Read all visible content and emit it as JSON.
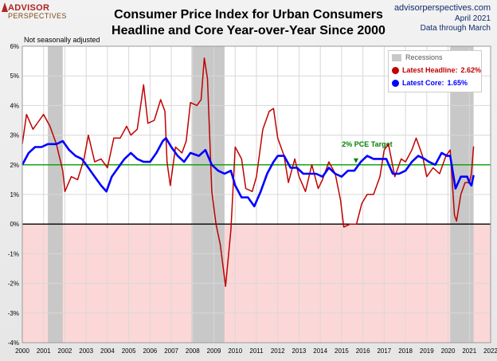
{
  "logo": {
    "line1": "ADVISOR",
    "line2": "PERSPECTIVES"
  },
  "site": "advisorperspectives.com",
  "date_line": "April 2021",
  "through_line": "Data through March",
  "note": "Not seasonally adjusted",
  "colors": {
    "headline": "#c00000",
    "core": "#0000ff",
    "target": "#00a000",
    "recession": "#c8c8c8",
    "negative_band": "#fcd7d7"
  },
  "chart_data": {
    "type": "line",
    "title": "Consumer Price Index for Urban Consumers",
    "subtitle": "Headline and Core Year-over-Year Since 2000",
    "xlim": [
      2000,
      2022
    ],
    "ylim": [
      -4,
      6
    ],
    "y_ticks": [
      -4,
      -3,
      -2,
      -1,
      0,
      1,
      2,
      3,
      4,
      5,
      6
    ],
    "y_tick_labels": [
      "-4%",
      "-3%",
      "-2%",
      "-1%",
      "0%",
      "1%",
      "2%",
      "3%",
      "4%",
      "5%",
      "6%"
    ],
    "x_ticks": [
      2000,
      2001,
      2002,
      2003,
      2004,
      2005,
      2006,
      2007,
      2008,
      2009,
      2010,
      2011,
      2012,
      2013,
      2014,
      2015,
      2016,
      2017,
      2018,
      2019,
      2020,
      2021,
      2022
    ],
    "x_tick_labels": [
      "2000",
      "2001",
      "2002",
      "2003",
      "2004",
      "2005",
      "2006",
      "2007",
      "2008",
      "2009",
      "2010",
      "2011",
      "2012",
      "2013",
      "2014",
      "2015",
      "2016",
      "2017",
      "2018",
      "2019",
      "2020",
      "2021",
      "2022"
    ],
    "grid": true,
    "legend_position": "top-right",
    "legend": {
      "recessions": "Recessions",
      "headline_label": "Latest Headline:",
      "headline_value": "2.62%",
      "core_label": "Latest Core:",
      "core_value": "1.65%"
    },
    "recessions": [
      {
        "start": 2001.2,
        "end": 2001.9
      },
      {
        "start": 2007.95,
        "end": 2009.5
      },
      {
        "start": 2020.1,
        "end": 2021.2
      }
    ],
    "target": {
      "value": 2,
      "label": "2% PCE Target",
      "label_x": 2016.2
    },
    "series": [
      {
        "name": "Headline",
        "color": "#c00000",
        "points": [
          [
            2000,
            2.7
          ],
          [
            2000.2,
            3.7
          ],
          [
            2000.5,
            3.2
          ],
          [
            2000.8,
            3.5
          ],
          [
            2001,
            3.7
          ],
          [
            2001.3,
            3.3
          ],
          [
            2001.6,
            2.7
          ],
          [
            2001.9,
            1.8
          ],
          [
            2002,
            1.1
          ],
          [
            2002.3,
            1.6
          ],
          [
            2002.6,
            1.5
          ],
          [
            2002.9,
            2.2
          ],
          [
            2003.1,
            3.0
          ],
          [
            2003.4,
            2.1
          ],
          [
            2003.7,
            2.2
          ],
          [
            2004,
            1.9
          ],
          [
            2004.3,
            2.9
          ],
          [
            2004.6,
            2.9
          ],
          [
            2004.9,
            3.3
          ],
          [
            2005.1,
            3.0
          ],
          [
            2005.4,
            3.2
          ],
          [
            2005.7,
            4.7
          ],
          [
            2005.9,
            3.4
          ],
          [
            2006.2,
            3.5
          ],
          [
            2006.5,
            4.2
          ],
          [
            2006.7,
            3.8
          ],
          [
            2006.8,
            2.1
          ],
          [
            2006.95,
            1.3
          ],
          [
            2007.2,
            2.6
          ],
          [
            2007.5,
            2.4
          ],
          [
            2007.7,
            2.8
          ],
          [
            2007.9,
            4.1
          ],
          [
            2008.2,
            4.0
          ],
          [
            2008.4,
            4.2
          ],
          [
            2008.55,
            5.6
          ],
          [
            2008.7,
            4.9
          ],
          [
            2008.9,
            1.1
          ],
          [
            2009.1,
            0.0
          ],
          [
            2009.3,
            -0.7
          ],
          [
            2009.55,
            -2.1
          ],
          [
            2009.8,
            -0.2
          ],
          [
            2010,
            2.6
          ],
          [
            2010.3,
            2.2
          ],
          [
            2010.5,
            1.2
          ],
          [
            2010.8,
            1.1
          ],
          [
            2011,
            1.6
          ],
          [
            2011.3,
            3.2
          ],
          [
            2011.6,
            3.8
          ],
          [
            2011.8,
            3.9
          ],
          [
            2012,
            2.9
          ],
          [
            2012.3,
            2.3
          ],
          [
            2012.5,
            1.4
          ],
          [
            2012.8,
            2.2
          ],
          [
            2013,
            1.6
          ],
          [
            2013.3,
            1.1
          ],
          [
            2013.6,
            2.0
          ],
          [
            2013.9,
            1.2
          ],
          [
            2014.1,
            1.5
          ],
          [
            2014.4,
            2.1
          ],
          [
            2014.7,
            1.7
          ],
          [
            2014.95,
            0.8
          ],
          [
            2015.1,
            -0.1
          ],
          [
            2015.4,
            0.0
          ],
          [
            2015.7,
            0.0
          ],
          [
            2015.95,
            0.7
          ],
          [
            2016.2,
            1.0
          ],
          [
            2016.5,
            1.0
          ],
          [
            2016.8,
            1.6
          ],
          [
            2017,
            2.5
          ],
          [
            2017.2,
            2.7
          ],
          [
            2017.5,
            1.6
          ],
          [
            2017.8,
            2.2
          ],
          [
            2018,
            2.1
          ],
          [
            2018.3,
            2.5
          ],
          [
            2018.5,
            2.9
          ],
          [
            2018.8,
            2.3
          ],
          [
            2019,
            1.6
          ],
          [
            2019.3,
            1.9
          ],
          [
            2019.6,
            1.7
          ],
          [
            2019.9,
            2.3
          ],
          [
            2020.1,
            2.5
          ],
          [
            2020.3,
            0.3
          ],
          [
            2020.4,
            0.1
          ],
          [
            2020.6,
            1.0
          ],
          [
            2020.8,
            1.4
          ],
          [
            2021,
            1.4
          ],
          [
            2021.1,
            1.7
          ],
          [
            2021.2,
            2.62
          ]
        ]
      },
      {
        "name": "Core",
        "color": "#0000ff",
        "points": [
          [
            2000,
            2.0
          ],
          [
            2000.3,
            2.4
          ],
          [
            2000.6,
            2.6
          ],
          [
            2000.9,
            2.6
          ],
          [
            2001.2,
            2.7
          ],
          [
            2001.6,
            2.7
          ],
          [
            2001.9,
            2.8
          ],
          [
            2002.2,
            2.5
          ],
          [
            2002.5,
            2.3
          ],
          [
            2002.8,
            2.2
          ],
          [
            2003.1,
            1.9
          ],
          [
            2003.4,
            1.6
          ],
          [
            2003.7,
            1.3
          ],
          [
            2003.95,
            1.1
          ],
          [
            2004.2,
            1.6
          ],
          [
            2004.5,
            1.9
          ],
          [
            2004.8,
            2.2
          ],
          [
            2005.1,
            2.4
          ],
          [
            2005.4,
            2.2
          ],
          [
            2005.7,
            2.1
          ],
          [
            2006,
            2.1
          ],
          [
            2006.3,
            2.4
          ],
          [
            2006.6,
            2.8
          ],
          [
            2006.75,
            2.9
          ],
          [
            2007,
            2.6
          ],
          [
            2007.3,
            2.3
          ],
          [
            2007.6,
            2.1
          ],
          [
            2007.9,
            2.4
          ],
          [
            2008.3,
            2.3
          ],
          [
            2008.6,
            2.5
          ],
          [
            2008.9,
            2.0
          ],
          [
            2009.2,
            1.8
          ],
          [
            2009.5,
            1.7
          ],
          [
            2009.8,
            1.8
          ],
          [
            2010,
            1.3
          ],
          [
            2010.3,
            0.9
          ],
          [
            2010.6,
            0.9
          ],
          [
            2010.9,
            0.6
          ],
          [
            2011.2,
            1.1
          ],
          [
            2011.5,
            1.7
          ],
          [
            2011.8,
            2.1
          ],
          [
            2012,
            2.3
          ],
          [
            2012.3,
            2.3
          ],
          [
            2012.6,
            1.9
          ],
          [
            2012.9,
            1.9
          ],
          [
            2013.2,
            1.7
          ],
          [
            2013.5,
            1.7
          ],
          [
            2013.8,
            1.7
          ],
          [
            2014.1,
            1.6
          ],
          [
            2014.4,
            1.9
          ],
          [
            2014.7,
            1.7
          ],
          [
            2015,
            1.6
          ],
          [
            2015.3,
            1.8
          ],
          [
            2015.6,
            1.8
          ],
          [
            2015.9,
            2.1
          ],
          [
            2016.2,
            2.3
          ],
          [
            2016.5,
            2.2
          ],
          [
            2016.8,
            2.2
          ],
          [
            2017.1,
            2.2
          ],
          [
            2017.4,
            1.7
          ],
          [
            2017.7,
            1.7
          ],
          [
            2018,
            1.8
          ],
          [
            2018.3,
            2.1
          ],
          [
            2018.6,
            2.3
          ],
          [
            2018.9,
            2.2
          ],
          [
            2019.1,
            2.1
          ],
          [
            2019.4,
            2.0
          ],
          [
            2019.7,
            2.4
          ],
          [
            2019.95,
            2.3
          ],
          [
            2020.1,
            2.3
          ],
          [
            2020.35,
            1.2
          ],
          [
            2020.6,
            1.6
          ],
          [
            2020.9,
            1.6
          ],
          [
            2021,
            1.4
          ],
          [
            2021.1,
            1.3
          ],
          [
            2021.2,
            1.65
          ]
        ]
      }
    ]
  }
}
